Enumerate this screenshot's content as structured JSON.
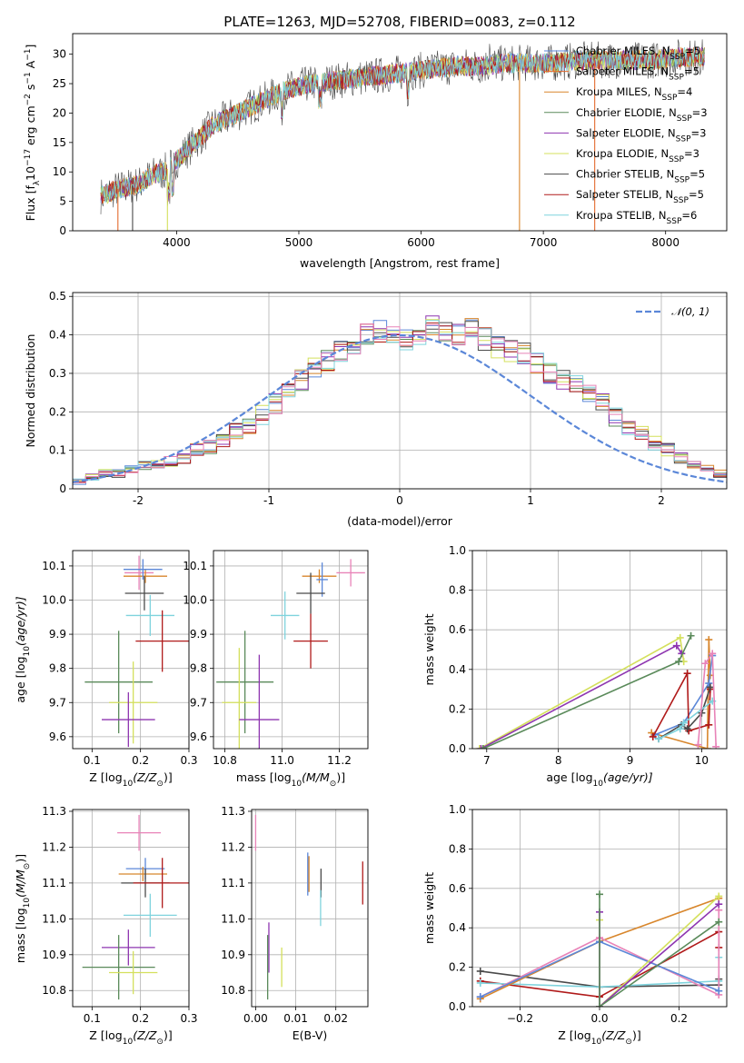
{
  "figure": {
    "title": "PLATE=1263, MJD=52708, FIBERID=0083, z=0.112"
  },
  "colors": {
    "Chabrier MILES": "#5b87d8",
    "Salpeter MILES": "#e36b2e",
    "Kroupa MILES": "#d8862c",
    "Chabrier ELODIE": "#5a8a5a",
    "Salpeter ELODIE": "#8e35b0",
    "Kroupa ELODIE": "#d4e05c",
    "Chabrier STELIB": "#4a4a4a",
    "Salpeter STELIB": "#b01a1a",
    "Kroupa STELIB": "#7fd3dd",
    "pink": "#e883b8",
    "gaussian": "#5b87d8"
  },
  "legend_spectrum": [
    {
      "label": "Chabrier MILES, N",
      "sub": "SSP",
      "suffix": "=5",
      "color": "#5b87d8"
    },
    {
      "label": "Salpeter MILES, N",
      "sub": "SSP",
      "suffix": "=5",
      "color": "#e36b2e"
    },
    {
      "label": "Kroupa MILES, N",
      "sub": "SSP",
      "suffix": "=4",
      "color": "#d8862c"
    },
    {
      "label": "Chabrier ELODIE, N",
      "sub": "SSP",
      "suffix": "=3",
      "color": "#5a8a5a"
    },
    {
      "label": "Salpeter ELODIE, N",
      "sub": "SSP",
      "suffix": "=3",
      "color": "#8e35b0"
    },
    {
      "label": "Kroupa ELODIE, N",
      "sub": "SSP",
      "suffix": "=3",
      "color": "#d4e05c"
    },
    {
      "label": "Chabrier STELIB, N",
      "sub": "SSP",
      "suffix": "=5",
      "color": "#4a4a4a"
    },
    {
      "label": "Salpeter STELIB, N",
      "sub": "SSP",
      "suffix": "=5",
      "color": "#b01a1a"
    },
    {
      "label": "Kroupa STELIB, N",
      "sub": "SSP",
      "suffix": "=6",
      "color": "#7fd3dd"
    }
  ],
  "chart_data": [
    {
      "id": "spectrum",
      "type": "line",
      "xlabel": "wavelength [Angstrom, rest frame]",
      "ylabel_main": "Flux [f",
      "ylabel_sub": "λ",
      "ylabel_mid": "10",
      "ylabel_sup1": "−17",
      "ylabel_mid2": " erg cm",
      "ylabel_sup2": "−2",
      "ylabel_mid3": " s",
      "ylabel_sup3": "−1",
      "ylabel_mid4": " A",
      "ylabel_sup4": "−1",
      "ylabel_end": "]",
      "xlim": [
        3150,
        8500
      ],
      "ylim": [
        0,
        33.5
      ],
      "xticks": [
        4000,
        5000,
        6000,
        7000,
        8000
      ],
      "yticks": [
        0,
        5,
        10,
        15,
        20,
        25,
        30
      ],
      "series_shape": {
        "x": [
          3400,
          3500,
          3600,
          3700,
          3800,
          3900,
          4000,
          4100,
          4200,
          4300,
          4400,
          4500,
          4700,
          4900,
          5100,
          5300,
          5500,
          5700,
          5900,
          6100,
          6300,
          6500,
          6700,
          6900,
          7100,
          7300,
          7500,
          7700,
          7900,
          8100,
          8300
        ],
        "y": [
          6,
          7,
          7.5,
          8,
          9.5,
          10,
          12,
          14,
          16,
          18,
          19,
          20,
          22,
          24,
          25,
          25.5,
          26,
          26.5,
          27,
          27.5,
          28,
          28,
          28.5,
          28.5,
          28.5,
          29,
          29,
          29,
          29,
          29.5,
          29.5
        ]
      },
      "legend_position": "upper right"
    },
    {
      "id": "residuals",
      "type": "histogram",
      "xlabel": "(data-model)/error",
      "ylabel": "Normed distribution",
      "xlim": [
        -2.5,
        2.5
      ],
      "ylim": [
        0,
        0.51
      ],
      "xticks": [
        -2,
        -1,
        0,
        1,
        2
      ],
      "yticks": [
        0.0,
        0.1,
        0.2,
        0.3,
        0.4,
        0.5
      ],
      "bins_start": -2.5,
      "bin_width": 0.1,
      "base_values": [
        0.02,
        0.03,
        0.04,
        0.04,
        0.05,
        0.06,
        0.06,
        0.07,
        0.08,
        0.1,
        0.11,
        0.13,
        0.15,
        0.17,
        0.19,
        0.22,
        0.25,
        0.28,
        0.31,
        0.33,
        0.36,
        0.38,
        0.4,
        0.41,
        0.4,
        0.39,
        0.4,
        0.42,
        0.41,
        0.4,
        0.42,
        0.39,
        0.37,
        0.36,
        0.35,
        0.33,
        0.3,
        0.28,
        0.27,
        0.24,
        0.22,
        0.19,
        0.16,
        0.14,
        0.12,
        0.1,
        0.08,
        0.06,
        0.05,
        0.04
      ],
      "gaussian_label": "𝒩(0, 1)",
      "legend_position": "upper right"
    },
    {
      "id": "age_vs_Z",
      "type": "errorbar",
      "xlabel_main": "Z [log",
      "xlabel_sub": "10",
      "xlabel_end": "(Z/Z",
      "xlabel_sub2": "⊙",
      "xlabel_close": ")]",
      "ylabel_main": "age  [log",
      "ylabel_sub": "10",
      "ylabel_end": "(age/yr)]",
      "xlim": [
        0.06,
        0.3
      ],
      "ylim": [
        9.565,
        10.145
      ],
      "xticks": [
        0.1,
        0.2,
        0.3
      ],
      "xticklabels": [
        "0.1",
        "0.2",
        "0.3"
      ],
      "yticks": [
        9.6,
        9.7,
        9.8,
        9.9,
        10.0,
        10.1
      ],
      "yticklabels": [
        "9.6",
        "9.7",
        "9.8",
        "9.9",
        "10.0",
        "10.1"
      ],
      "points": [
        {
          "x": 0.197,
          "y": 10.08,
          "xerr": 0.03,
          "yerr": 0.05,
          "color": "#e883b8"
        },
        {
          "x": 0.21,
          "y": 10.07,
          "xerr": 0.045,
          "yerr": 0.02,
          "color": "#d8862c"
        },
        {
          "x": 0.205,
          "y": 10.09,
          "xerr": 0.04,
          "yerr": 0.03,
          "color": "#5b87d8"
        },
        {
          "x": 0.208,
          "y": 10.02,
          "xerr": 0.04,
          "yerr": 0.05,
          "color": "#4a4a4a"
        },
        {
          "x": 0.22,
          "y": 9.955,
          "xerr": 0.05,
          "yerr": 0.06,
          "color": "#7fd3dd"
        },
        {
          "x": 0.245,
          "y": 9.88,
          "xerr": 0.055,
          "yerr": 0.09,
          "color": "#b01a1a"
        },
        {
          "x": 0.155,
          "y": 9.76,
          "xerr": 0.07,
          "yerr": 0.15,
          "color": "#5a8a5a"
        },
        {
          "x": 0.185,
          "y": 9.7,
          "xerr": 0.05,
          "yerr": 0.12,
          "color": "#d4e05c"
        },
        {
          "x": 0.175,
          "y": 9.65,
          "xerr": 0.055,
          "yerr": 0.08,
          "color": "#8e35b0"
        }
      ]
    },
    {
      "id": "age_vs_mass",
      "type": "errorbar",
      "xlabel_main": "mass [log",
      "xlabel_sub": "10",
      "xlabel_end": "(M/M",
      "xlabel_sub2": "⊙",
      "xlabel_close": ")]",
      "xlim": [
        10.76,
        11.3
      ],
      "ylim": [
        9.565,
        10.145
      ],
      "xticks": [
        10.8,
        11.0,
        11.2
      ],
      "xticklabels": [
        "10.8",
        "11.0",
        "11.2"
      ],
      "yticks": [
        9.6,
        9.7,
        9.8,
        9.9,
        10.0,
        10.1
      ],
      "yticklabels": [
        "9.6",
        "9.7",
        "9.8",
        "9.9",
        "10.0",
        "10.1"
      ],
      "points": [
        {
          "x": 11.24,
          "y": 10.08,
          "xerr": 0.05,
          "yerr": 0.04,
          "color": "#e883b8"
        },
        {
          "x": 11.13,
          "y": 10.07,
          "xerr": 0.06,
          "yerr": 0.02,
          "color": "#d8862c"
        },
        {
          "x": 11.14,
          "y": 10.06,
          "xerr": 0.02,
          "yerr": 0.05,
          "color": "#5b87d8"
        },
        {
          "x": 11.1,
          "y": 10.02,
          "xerr": 0.05,
          "yerr": 0.06,
          "color": "#4a4a4a"
        },
        {
          "x": 11.01,
          "y": 9.955,
          "xerr": 0.05,
          "yerr": 0.07,
          "color": "#7fd3dd"
        },
        {
          "x": 11.1,
          "y": 9.88,
          "xerr": 0.06,
          "yerr": 0.08,
          "color": "#b01a1a"
        },
        {
          "x": 10.87,
          "y": 9.76,
          "xerr": 0.1,
          "yerr": 0.15,
          "color": "#5a8a5a"
        },
        {
          "x": 10.85,
          "y": 9.7,
          "xerr": 0.06,
          "yerr": 0.16,
          "color": "#d4e05c"
        },
        {
          "x": 10.92,
          "y": 9.65,
          "xerr": 0.07,
          "yerr": 0.19,
          "color": "#8e35b0"
        }
      ]
    },
    {
      "id": "mass_weight_vs_age",
      "type": "line",
      "xlabel_main": "age  [log",
      "xlabel_sub": "10",
      "xlabel_end": "(age/yr)]",
      "ylabel": "mass weight",
      "xlim": [
        6.8,
        10.35
      ],
      "ylim": [
        0.0,
        1.0
      ],
      "xticks": [
        7,
        8,
        9,
        10
      ],
      "xticklabels": [
        "7",
        "8",
        "9",
        "10"
      ],
      "yticks": [
        0.0,
        0.2,
        0.4,
        0.6,
        0.8,
        1.0
      ],
      "yticklabels": [
        "0.0",
        "0.2",
        "0.4",
        "0.6",
        "0.8",
        "1.0"
      ],
      "series": [
        {
          "color": "#d4e05c",
          "x": [
            6.9,
            9.7,
            9.75
          ],
          "y": [
            0.0,
            0.56,
            0.44
          ]
        },
        {
          "color": "#8e35b0",
          "x": [
            6.92,
            9.65,
            9.72
          ],
          "y": [
            0.0,
            0.52,
            0.48
          ]
        },
        {
          "color": "#5a8a5a",
          "x": [
            6.95,
            9.68,
            9.85
          ],
          "y": [
            0.0,
            0.44,
            0.57
          ]
        },
        {
          "color": "#d8862c",
          "x": [
            9.3,
            10.08,
            10.1,
            10.12
          ],
          "y": [
            0.08,
            0.0,
            0.55,
            0.37
          ]
        },
        {
          "color": "#5b87d8",
          "x": [
            9.35,
            9.75,
            10.1,
            10.15
          ],
          "y": [
            0.07,
            0.13,
            0.33,
            0.47
          ]
        },
        {
          "color": "#b01a1a",
          "x": [
            9.32,
            9.8,
            9.82,
            10.1,
            10.12
          ],
          "y": [
            0.06,
            0.38,
            0.09,
            0.12,
            0.3
          ]
        },
        {
          "color": "#4a4a4a",
          "x": [
            9.4,
            9.72,
            9.8,
            10.0,
            10.12
          ],
          "y": [
            0.05,
            0.12,
            0.1,
            0.18,
            0.31
          ]
        },
        {
          "color": "#7fd3dd",
          "x": [
            9.4,
            9.7,
            9.75,
            10.15
          ],
          "y": [
            0.05,
            0.1,
            0.13,
            0.24
          ]
        },
        {
          "color": "#e883b8",
          "x": [
            9.95,
            10.05,
            10.15,
            10.2
          ],
          "y": [
            0.02,
            0.43,
            0.48,
            0.01
          ]
        }
      ]
    },
    {
      "id": "mass_vs_Z",
      "type": "errorbar",
      "xlabel_main": "Z [log",
      "xlabel_sub": "10",
      "xlabel_end": "(Z/Z",
      "xlabel_sub2": "⊙",
      "xlabel_close": ")]",
      "ylabel_main": "mass [log",
      "ylabel_sub": "10",
      "ylabel_end": "(M/M",
      "ylabel_sub2": "⊙",
      "ylabel_close": ")]",
      "xlim": [
        0.06,
        0.3
      ],
      "ylim": [
        10.755,
        11.305
      ],
      "xticks": [
        0.1,
        0.2,
        0.3
      ],
      "xticklabels": [
        "0.1",
        "0.2",
        "0.3"
      ],
      "yticks": [
        10.8,
        10.9,
        11.0,
        11.1,
        11.2,
        11.3
      ],
      "yticklabels": [
        "10.8",
        "10.9",
        "11.0",
        "11.1",
        "11.2",
        "11.3"
      ],
      "points": [
        {
          "x": 0.197,
          "y": 11.24,
          "xerr": 0.045,
          "yerr": 0.05,
          "color": "#e883b8"
        },
        {
          "x": 0.21,
          "y": 11.14,
          "xerr": 0.04,
          "yerr": 0.03,
          "color": "#5b87d8"
        },
        {
          "x": 0.205,
          "y": 11.125,
          "xerr": 0.05,
          "yerr": 0.02,
          "color": "#d8862c"
        },
        {
          "x": 0.21,
          "y": 11.1,
          "xerr": 0.05,
          "yerr": 0.04,
          "color": "#4a4a4a"
        },
        {
          "x": 0.245,
          "y": 11.1,
          "xerr": 0.06,
          "yerr": 0.07,
          "color": "#b01a1a"
        },
        {
          "x": 0.22,
          "y": 11.01,
          "xerr": 0.055,
          "yerr": 0.06,
          "color": "#7fd3dd"
        },
        {
          "x": 0.175,
          "y": 10.92,
          "xerr": 0.055,
          "yerr": 0.05,
          "color": "#8e35b0"
        },
        {
          "x": 0.155,
          "y": 10.865,
          "xerr": 0.075,
          "yerr": 0.09,
          "color": "#5a8a5a"
        },
        {
          "x": 0.185,
          "y": 10.85,
          "xerr": 0.05,
          "yerr": 0.06,
          "color": "#d4e05c"
        }
      ]
    },
    {
      "id": "mass_vs_ebv",
      "type": "errorbar",
      "xlabel": "E(B-V)",
      "xlim": [
        -0.001,
        0.028
      ],
      "ylim": [
        10.755,
        11.305
      ],
      "xticks": [
        0.0,
        0.01,
        0.02
      ],
      "xticklabels": [
        "0.00",
        "0.01",
        "0.02"
      ],
      "yticks": [
        10.8,
        10.9,
        11.0,
        11.1,
        11.2,
        11.3
      ],
      "yticklabels": [
        "10.8",
        "10.9",
        "11.0",
        "11.1",
        "11.2",
        "11.3"
      ],
      "points": [
        {
          "x": 0.0,
          "y": 11.24,
          "xerr": 0.0,
          "yerr": 0.05,
          "color": "#e883b8"
        },
        {
          "x": 0.013,
          "y": 11.125,
          "xerr": 0.0,
          "yerr": 0.06,
          "color": "#5b87d8"
        },
        {
          "x": 0.0133,
          "y": 11.125,
          "xerr": 0.0,
          "yerr": 0.05,
          "color": "#d8862c"
        },
        {
          "x": 0.0163,
          "y": 11.1,
          "xerr": 0.0,
          "yerr": 0.04,
          "color": "#4a4a4a"
        },
        {
          "x": 0.0267,
          "y": 11.1,
          "xerr": 0.0,
          "yerr": 0.06,
          "color": "#b01a1a"
        },
        {
          "x": 0.0162,
          "y": 11.03,
          "xerr": 0.0,
          "yerr": 0.05,
          "color": "#7fd3dd"
        },
        {
          "x": 0.0033,
          "y": 10.92,
          "xerr": 0.0,
          "yerr": 0.07,
          "color": "#8e35b0"
        },
        {
          "x": 0.003,
          "y": 10.865,
          "xerr": 0.0,
          "yerr": 0.09,
          "color": "#5a8a5a"
        },
        {
          "x": 0.0065,
          "y": 10.865,
          "xerr": 0.0,
          "yerr": 0.055,
          "color": "#d4e05c"
        }
      ]
    },
    {
      "id": "mass_weight_vs_Z",
      "type": "line",
      "xlabel_main": "Z [log",
      "xlabel_sub": "10",
      "xlabel_end": "(Z/Z",
      "xlabel_sub2": "⊙",
      "xlabel_close": ")]",
      "ylabel": "mass weight",
      "xlim": [
        -0.32,
        0.32
      ],
      "ylim": [
        0.0,
        1.0
      ],
      "xticks": [
        -0.2,
        0.0,
        0.2
      ],
      "xticklabels": [
        "−0.2",
        "0.0",
        "0.2"
      ],
      "yticks": [
        0.0,
        0.2,
        0.4,
        0.6,
        0.8,
        1.0
      ],
      "yticklabels": [
        "0.0",
        "0.2",
        "0.4",
        "0.6",
        "0.8",
        "1.0"
      ],
      "series": [
        {
          "color": "#4a4a4a",
          "x": [
            -0.3,
            0.0,
            0.3,
            0.3
          ],
          "y": [
            0.18,
            0.1,
            0.11,
            0.14
          ]
        },
        {
          "color": "#b01a1a",
          "x": [
            -0.3,
            0.0,
            0.3,
            0.3
          ],
          "y": [
            0.13,
            0.05,
            0.38,
            0.3
          ]
        },
        {
          "color": "#7fd3dd",
          "x": [
            -0.3,
            0.0,
            0.3,
            0.3
          ],
          "y": [
            0.12,
            0.1,
            0.13,
            0.25
          ]
        },
        {
          "color": "#d8862c",
          "x": [
            -0.3,
            0.0,
            0.3
          ],
          "y": [
            0.04,
            0.33,
            0.55
          ]
        },
        {
          "color": "#e883b8",
          "x": [
            -0.3,
            0.0,
            0.3,
            0.3
          ],
          "y": [
            0.05,
            0.35,
            0.06,
            0.49
          ]
        },
        {
          "color": "#5b87d8",
          "x": [
            -0.3,
            0.0,
            0.3
          ],
          "y": [
            0.05,
            0.33,
            0.08
          ]
        },
        {
          "color": "#d4e05c",
          "x": [
            0.0,
            0.0,
            0.3
          ],
          "y": [
            0.44,
            0.0,
            0.56
          ]
        },
        {
          "color": "#8e35b0",
          "x": [
            0.0,
            0.0,
            0.3
          ],
          "y": [
            0.48,
            0.0,
            0.52
          ]
        },
        {
          "color": "#5a8a5a",
          "x": [
            0.0,
            0.0,
            0.3
          ],
          "y": [
            0.57,
            0.0,
            0.43
          ]
        }
      ]
    }
  ]
}
